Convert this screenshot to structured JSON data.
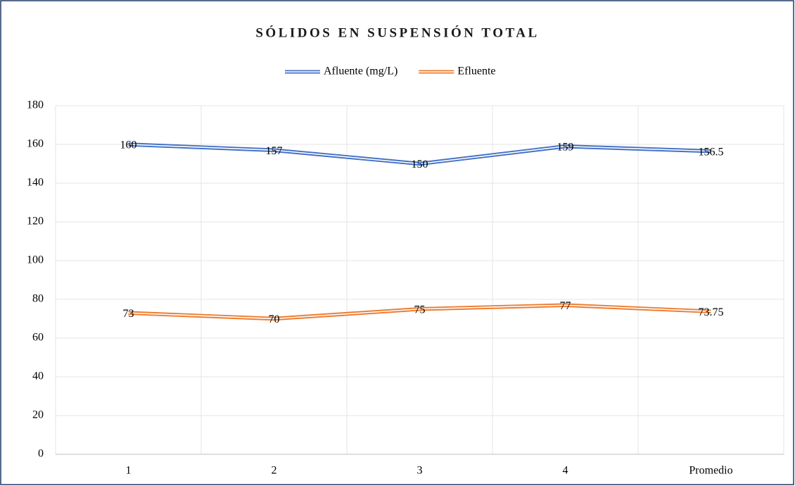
{
  "chart_data": {
    "type": "line",
    "title": "SÓLIDOS EN SUSPENSIÓN TOTAL",
    "categories": [
      "1",
      "2",
      "3",
      "4",
      "Promedio"
    ],
    "series": [
      {
        "name": "Afluente (mg/L)",
        "color": "#4472c4",
        "values": [
          160,
          157,
          150,
          159,
          156.5
        ]
      },
      {
        "name": "Efluente",
        "color": "#ed7d31",
        "values": [
          73,
          70,
          75,
          77,
          73.75
        ]
      }
    ],
    "ylim": [
      0,
      180
    ],
    "yticks": [
      0,
      20,
      40,
      60,
      80,
      100,
      120,
      140,
      160,
      180
    ],
    "grid": true,
    "legend": "top"
  }
}
